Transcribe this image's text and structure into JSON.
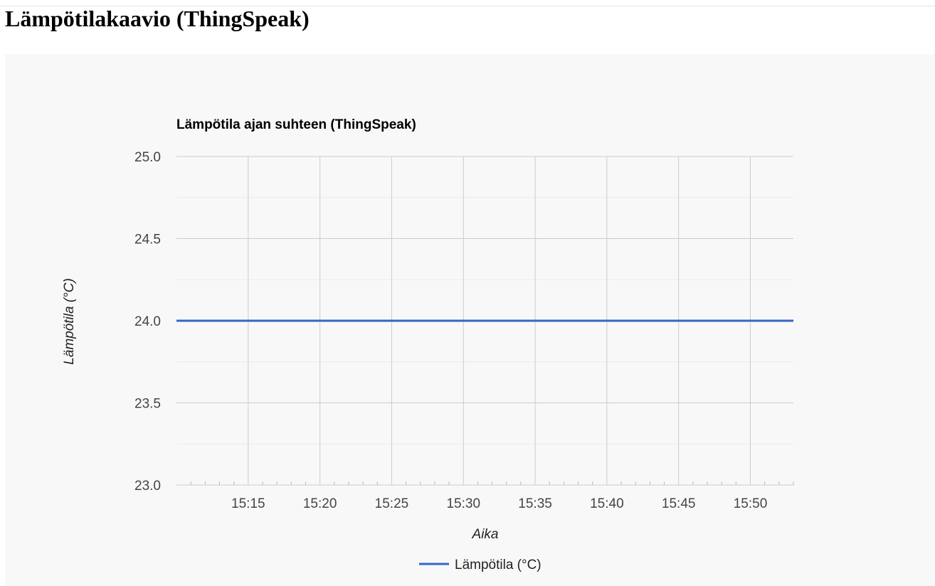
{
  "page": {
    "title": "Lämpötilakaavio (ThingSpeak)"
  },
  "chart_data": {
    "type": "line",
    "title": "Lämpötila ajan suhteen (ThingSpeak)",
    "xlabel": "Aika",
    "ylabel": "Lämpötila (°C)",
    "ylim": [
      23.0,
      25.0
    ],
    "xlim": [
      "15:10",
      "15:53"
    ],
    "y_ticks": [
      "25.0",
      "24.5",
      "24.0",
      "23.5",
      "23.0"
    ],
    "x_ticks": [
      "15:15",
      "15:20",
      "15:25",
      "15:30",
      "15:35",
      "15:40",
      "15:45",
      "15:50"
    ],
    "grid": true,
    "legend": "bottom",
    "series": [
      {
        "name": "Lämpötila (°C)",
        "color": "#3366cc",
        "x": [
          "15:10",
          "15:53"
        ],
        "y": [
          24.0,
          24.0
        ]
      }
    ]
  }
}
